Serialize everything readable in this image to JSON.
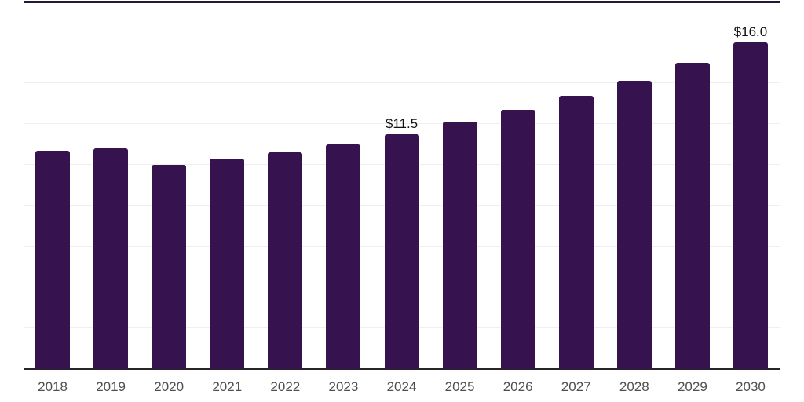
{
  "chart_data": {
    "type": "bar",
    "title": "",
    "xlabel": "",
    "ylabel": "",
    "categories": [
      "2018",
      "2019",
      "2020",
      "2021",
      "2022",
      "2023",
      "2024",
      "2025",
      "2026",
      "2027",
      "2028",
      "2029",
      "2030"
    ],
    "values": [
      10.7,
      10.8,
      10.0,
      10.3,
      10.6,
      11.0,
      11.5,
      12.1,
      12.7,
      13.4,
      14.1,
      15.0,
      16.0
    ],
    "value_unit_prefix": "$",
    "data_labels": [
      {
        "category": "2024",
        "label": "$11.5"
      },
      {
        "category": "2030",
        "label": "$16.0"
      }
    ],
    "ylim": [
      0,
      18
    ],
    "grid_step": 2,
    "grid": true,
    "legend": false,
    "y_axis_labels_visible": false,
    "colors": {
      "bar": "#36124f",
      "axis_line": "#262626",
      "gridline": "#efeff2",
      "top_rule": "#231639",
      "tick_label": "#4f4f4f",
      "data_label": "#111111",
      "background": "#ffffff"
    }
  }
}
